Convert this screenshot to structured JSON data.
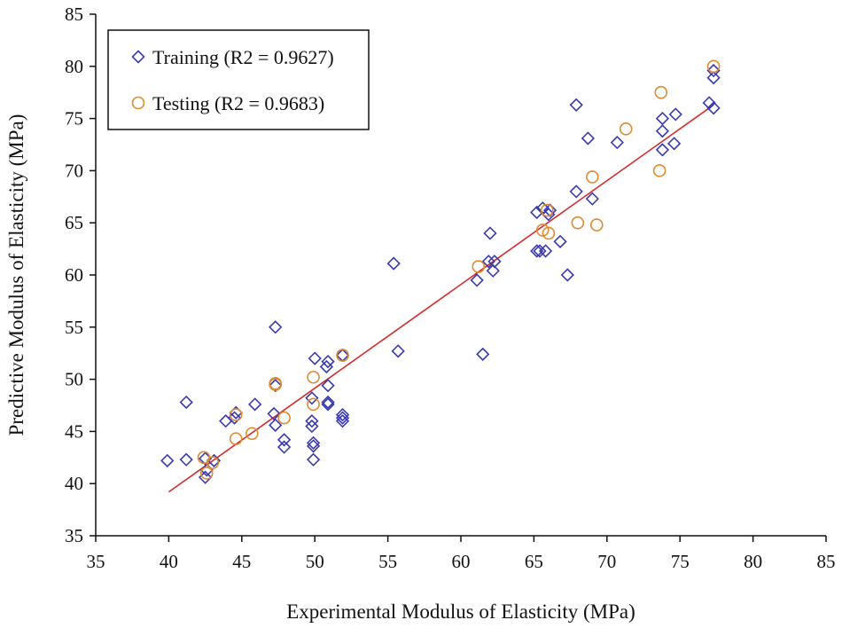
{
  "chart_data": {
    "type": "scatter",
    "title": "",
    "xlabel": "Experimental Modulus of Elasticity (MPa)",
    "ylabel": "Predictive Modulus of Elasticity (MPa)",
    "xlim": [
      35,
      85
    ],
    "ylim": [
      35,
      85
    ],
    "xticks": [
      35,
      40,
      45,
      50,
      55,
      60,
      65,
      70,
      75,
      80,
      85
    ],
    "yticks": [
      35,
      40,
      45,
      50,
      55,
      60,
      65,
      70,
      75,
      80,
      85
    ],
    "grid": false,
    "legend_position": "top-left",
    "colors": {
      "training": "#3a3ab0",
      "testing": "#e08a30",
      "fit_line": "#d42a2a"
    },
    "series": [
      {
        "name": "Training (R2 = 0.9627)",
        "marker": "diamond",
        "points": [
          [
            39.9,
            42.2
          ],
          [
            41.2,
            42.3
          ],
          [
            41.2,
            47.8
          ],
          [
            42.5,
            42.4
          ],
          [
            42.5,
            40.6
          ],
          [
            42.6,
            41.3
          ],
          [
            43.1,
            42.2
          ],
          [
            43.9,
            46.0
          ],
          [
            44.5,
            46.3
          ],
          [
            44.6,
            46.8
          ],
          [
            45.9,
            47.6
          ],
          [
            47.2,
            46.7
          ],
          [
            47.3,
            55.0
          ],
          [
            47.3,
            45.6
          ],
          [
            47.3,
            49.4
          ],
          [
            47.9,
            44.2
          ],
          [
            47.9,
            43.5
          ],
          [
            49.8,
            46.0
          ],
          [
            49.8,
            45.5
          ],
          [
            49.8,
            48.2
          ],
          [
            49.9,
            43.9
          ],
          [
            49.9,
            43.6
          ],
          [
            49.9,
            42.3
          ],
          [
            50.0,
            52.0
          ],
          [
            50.8,
            51.2
          ],
          [
            50.9,
            51.7
          ],
          [
            50.9,
            49.4
          ],
          [
            50.9,
            47.6
          ],
          [
            50.9,
            47.8
          ],
          [
            51.9,
            52.3
          ],
          [
            51.9,
            46.6
          ],
          [
            51.9,
            46.3
          ],
          [
            51.9,
            46.0
          ],
          [
            55.4,
            61.1
          ],
          [
            55.7,
            52.7
          ],
          [
            61.1,
            59.5
          ],
          [
            61.5,
            52.4
          ],
          [
            62.0,
            64.0
          ],
          [
            61.9,
            61.3
          ],
          [
            62.2,
            60.4
          ],
          [
            62.3,
            61.3
          ],
          [
            65.2,
            66.0
          ],
          [
            65.2,
            62.3
          ],
          [
            65.4,
            62.3
          ],
          [
            65.6,
            66.4
          ],
          [
            65.8,
            62.3
          ],
          [
            66.0,
            65.8
          ],
          [
            66.1,
            66.2
          ],
          [
            66.8,
            63.2
          ],
          [
            67.3,
            60.0
          ],
          [
            67.9,
            68.0
          ],
          [
            67.9,
            76.3
          ],
          [
            68.7,
            73.1
          ],
          [
            69.0,
            67.3
          ],
          [
            70.7,
            72.7
          ],
          [
            73.8,
            72.0
          ],
          [
            73.8,
            73.8
          ],
          [
            73.8,
            75.0
          ],
          [
            74.6,
            72.6
          ],
          [
            74.7,
            75.4
          ],
          [
            77.0,
            76.5
          ],
          [
            77.3,
            76.0
          ],
          [
            77.3,
            78.9
          ],
          [
            77.3,
            79.6
          ]
        ]
      },
      {
        "name": "Testing (R2 = 0.9683)",
        "marker": "circle",
        "points": [
          [
            42.4,
            42.5
          ],
          [
            42.6,
            41.0
          ],
          [
            43.0,
            42.0
          ],
          [
            44.6,
            44.3
          ],
          [
            44.6,
            46.6
          ],
          [
            45.7,
            44.8
          ],
          [
            47.3,
            49.6
          ],
          [
            47.3,
            49.5
          ],
          [
            47.9,
            46.3
          ],
          [
            49.9,
            50.2
          ],
          [
            49.9,
            47.6
          ],
          [
            51.9,
            52.3
          ],
          [
            61.2,
            60.8
          ],
          [
            65.6,
            64.3
          ],
          [
            65.9,
            66.2
          ],
          [
            66.0,
            64.0
          ],
          [
            68.0,
            65.0
          ],
          [
            69.0,
            69.4
          ],
          [
            69.3,
            64.8
          ],
          [
            71.3,
            74.0
          ],
          [
            73.6,
            70.0
          ],
          [
            73.7,
            77.5
          ],
          [
            77.3,
            80.0
          ]
        ]
      }
    ],
    "fit_line": {
      "x": [
        40,
        77.3
      ],
      "y": [
        39.2,
        76.3
      ]
    }
  }
}
